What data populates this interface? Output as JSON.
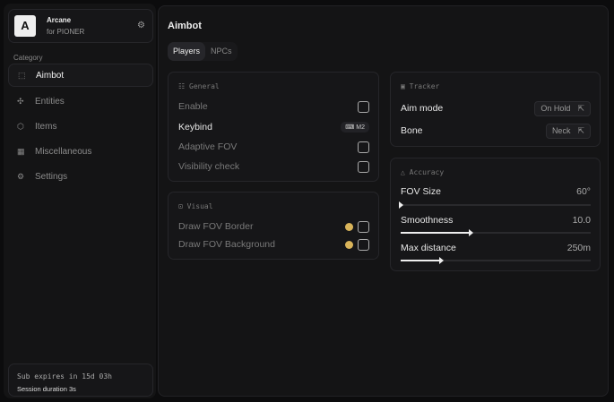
{
  "brand": {
    "logo": "A",
    "name": "Arcane",
    "sub": "for PIONER"
  },
  "sidebar": {
    "category_label": "Category",
    "items": [
      {
        "label": "Aimbot",
        "icon": "crosshair-icon",
        "active": true
      },
      {
        "label": "Entities",
        "icon": "entities-icon"
      },
      {
        "label": "Items",
        "icon": "box-icon"
      },
      {
        "label": "Miscellaneous",
        "icon": "grid-icon"
      },
      {
        "label": "Settings",
        "icon": "gear-icon"
      }
    ]
  },
  "footer": {
    "expires": "Sub expires in 15d 03h",
    "session": "Session duration 3s"
  },
  "main": {
    "title": "Aimbot",
    "tabs": [
      "Players",
      "NPCs"
    ],
    "active_tab": "Players"
  },
  "general": {
    "title": "General",
    "enable": "Enable",
    "keybind": "Keybind",
    "keybind_value": "M2",
    "adaptive": "Adaptive FOV",
    "visibility": "Visibility check"
  },
  "visual": {
    "title": "Visual",
    "border": "Draw FOV Border",
    "background": "Draw FOV Background",
    "color": "#d9b45a"
  },
  "tracker": {
    "title": "Tracker",
    "aim_mode": "Aim mode",
    "aim_mode_value": "On Hold",
    "bone": "Bone",
    "bone_value": "Neck"
  },
  "accuracy": {
    "title": "Accuracy",
    "fov": "FOV Size",
    "fov_value": "60°",
    "fov_fraction": 0.0,
    "smooth": "Smoothness",
    "smooth_value": "10.0",
    "smooth_fraction": 0.37,
    "dist": "Max distance",
    "dist_value": "250m",
    "dist_fraction": 0.21
  }
}
